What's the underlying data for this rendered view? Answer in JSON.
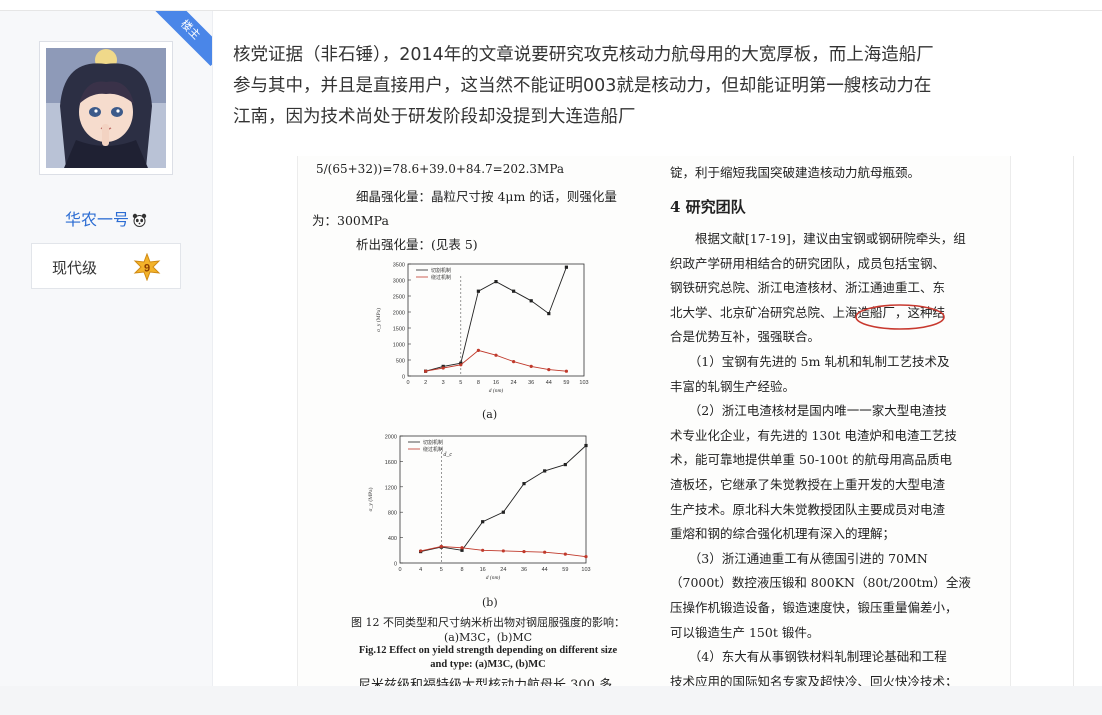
{
  "user": {
    "badge": "楼主",
    "name": "华农一号",
    "rank_label": "现代级",
    "rank_level": "9"
  },
  "post": {
    "lines": [
      "核党证据（非石锤），2014年的文章说要研究攻克核动力航母用的大宽厚板，而上海造船厂",
      "参与其中，并且是直接用户，这当然不能证明003就是核动力，但却能证明第一艘核动力在",
      "江南，因为技术尚处于研发阶段却没提到大连造船厂"
    ]
  },
  "scan": {
    "left": {
      "formula": "5/(65+32))=78.6+39.0+84.7=202.3MPa",
      "l1": "细晶强化量：晶粒尺寸按 4μm 的话，则强化量",
      "l2": "为：300MPa",
      "l3": "析出强化量：(见表 5)",
      "chart_a_label": "(a)",
      "chart_b_label": "(b)",
      "caption_cn1": "图 12 不同类型和尺寸纳米析出物对钢屈服强度的影响：",
      "caption_cn2": "(a)M3C，(b)MC",
      "caption_en1": "Fig.12 Effect on yield strength depending on different size",
      "caption_en2": "and type: (a)M3C, (b)MC",
      "bottom": "尼米兹级和福特级大型核动力航母长 300 多"
    },
    "right": {
      "l0": "锭，利于缩短我国突破建造核动力航母瓶颈。",
      "title": "4 研究团队",
      "lines": [
        "　　根据文献[17-19]，建议由宝钢或钢研院牵头，组",
        "织政产学研用相结合的研究团队，成员包括宝钢、",
        "钢铁研究总院、浙江电渣核材、浙江通迪重工、东",
        "北大学、北京矿冶研究总院、上海造船厂，这种结",
        "合是优势互补，强强联合。",
        "　　（1）宝钢有先进的 5m 轧机和轧制工艺技术及",
        "丰富的轧钢生产经验。",
        "　　（2）浙江电渣核材是国内唯一一家大型电渣技",
        "术专业化企业，有先进的 130t 电渣炉和电渣工艺技",
        "术，能可靠地提供单重 50-100t 的航母用高品质电",
        "渣板坯，它继承了朱觉教授在上重开发的大型电渣",
        "生产技术。原北科大朱觉教授团队主要成员对电渣",
        "重熔和钢的综合强化机理有深入的理解；",
        "　　（3）浙江通迪重工有从德国引进的 70MN",
        "（7000t）数控液压锻和 800KN（80t/200tm）全液",
        "压操作机锻造设备，锻造速度快，锻压重量偏差小，",
        "可以锻造生产 150t 锻件。",
        "　　（4）东大有从事钢铁材料轧制理论基础和工程",
        "技术应用的国际知名专家及超快冷、回火快冷技术；"
      ]
    }
  },
  "chart_data": [
    {
      "type": "line",
      "x": [
        "0",
        "2",
        "3",
        "5",
        "8",
        "16",
        "24",
        "36",
        "44",
        "59",
        "103"
      ],
      "ylabel": "σ_y (MPa)",
      "xlabel": "d (nm)",
      "ylim": [
        0,
        3500
      ],
      "yticks": [
        0,
        500,
        1000,
        1500,
        2000,
        2500,
        3000,
        3500
      ],
      "series": [
        {
          "name": "切割机制",
          "values": [
            null,
            150,
            300,
            400,
            2650,
            2950,
            2650,
            2350,
            1950,
            3400,
            null
          ]
        },
        {
          "name": "绕过机制",
          "values": [
            null,
            150,
            250,
            350,
            800,
            650,
            450,
            300,
            200,
            150,
            null
          ]
        }
      ],
      "vline_x": "5"
    },
    {
      "type": "line",
      "x": [
        "0",
        "4",
        "5",
        "8",
        "16",
        "24",
        "36",
        "44",
        "59",
        "103"
      ],
      "ylabel": "σ_y (MPa)",
      "xlabel": "d (nm)",
      "ylim": [
        0,
        2000
      ],
      "yticks": [
        0,
        400,
        800,
        1200,
        1600,
        2000
      ],
      "series": [
        {
          "name": "切割机制",
          "values": [
            null,
            180,
            250,
            200,
            650,
            800,
            1250,
            1450,
            1550,
            1850
          ]
        },
        {
          "name": "绕过机制",
          "values": [
            null,
            190,
            260,
            240,
            200,
            190,
            180,
            170,
            140,
            100
          ]
        }
      ],
      "vline_x": "5",
      "vline_label": "d_c"
    }
  ]
}
